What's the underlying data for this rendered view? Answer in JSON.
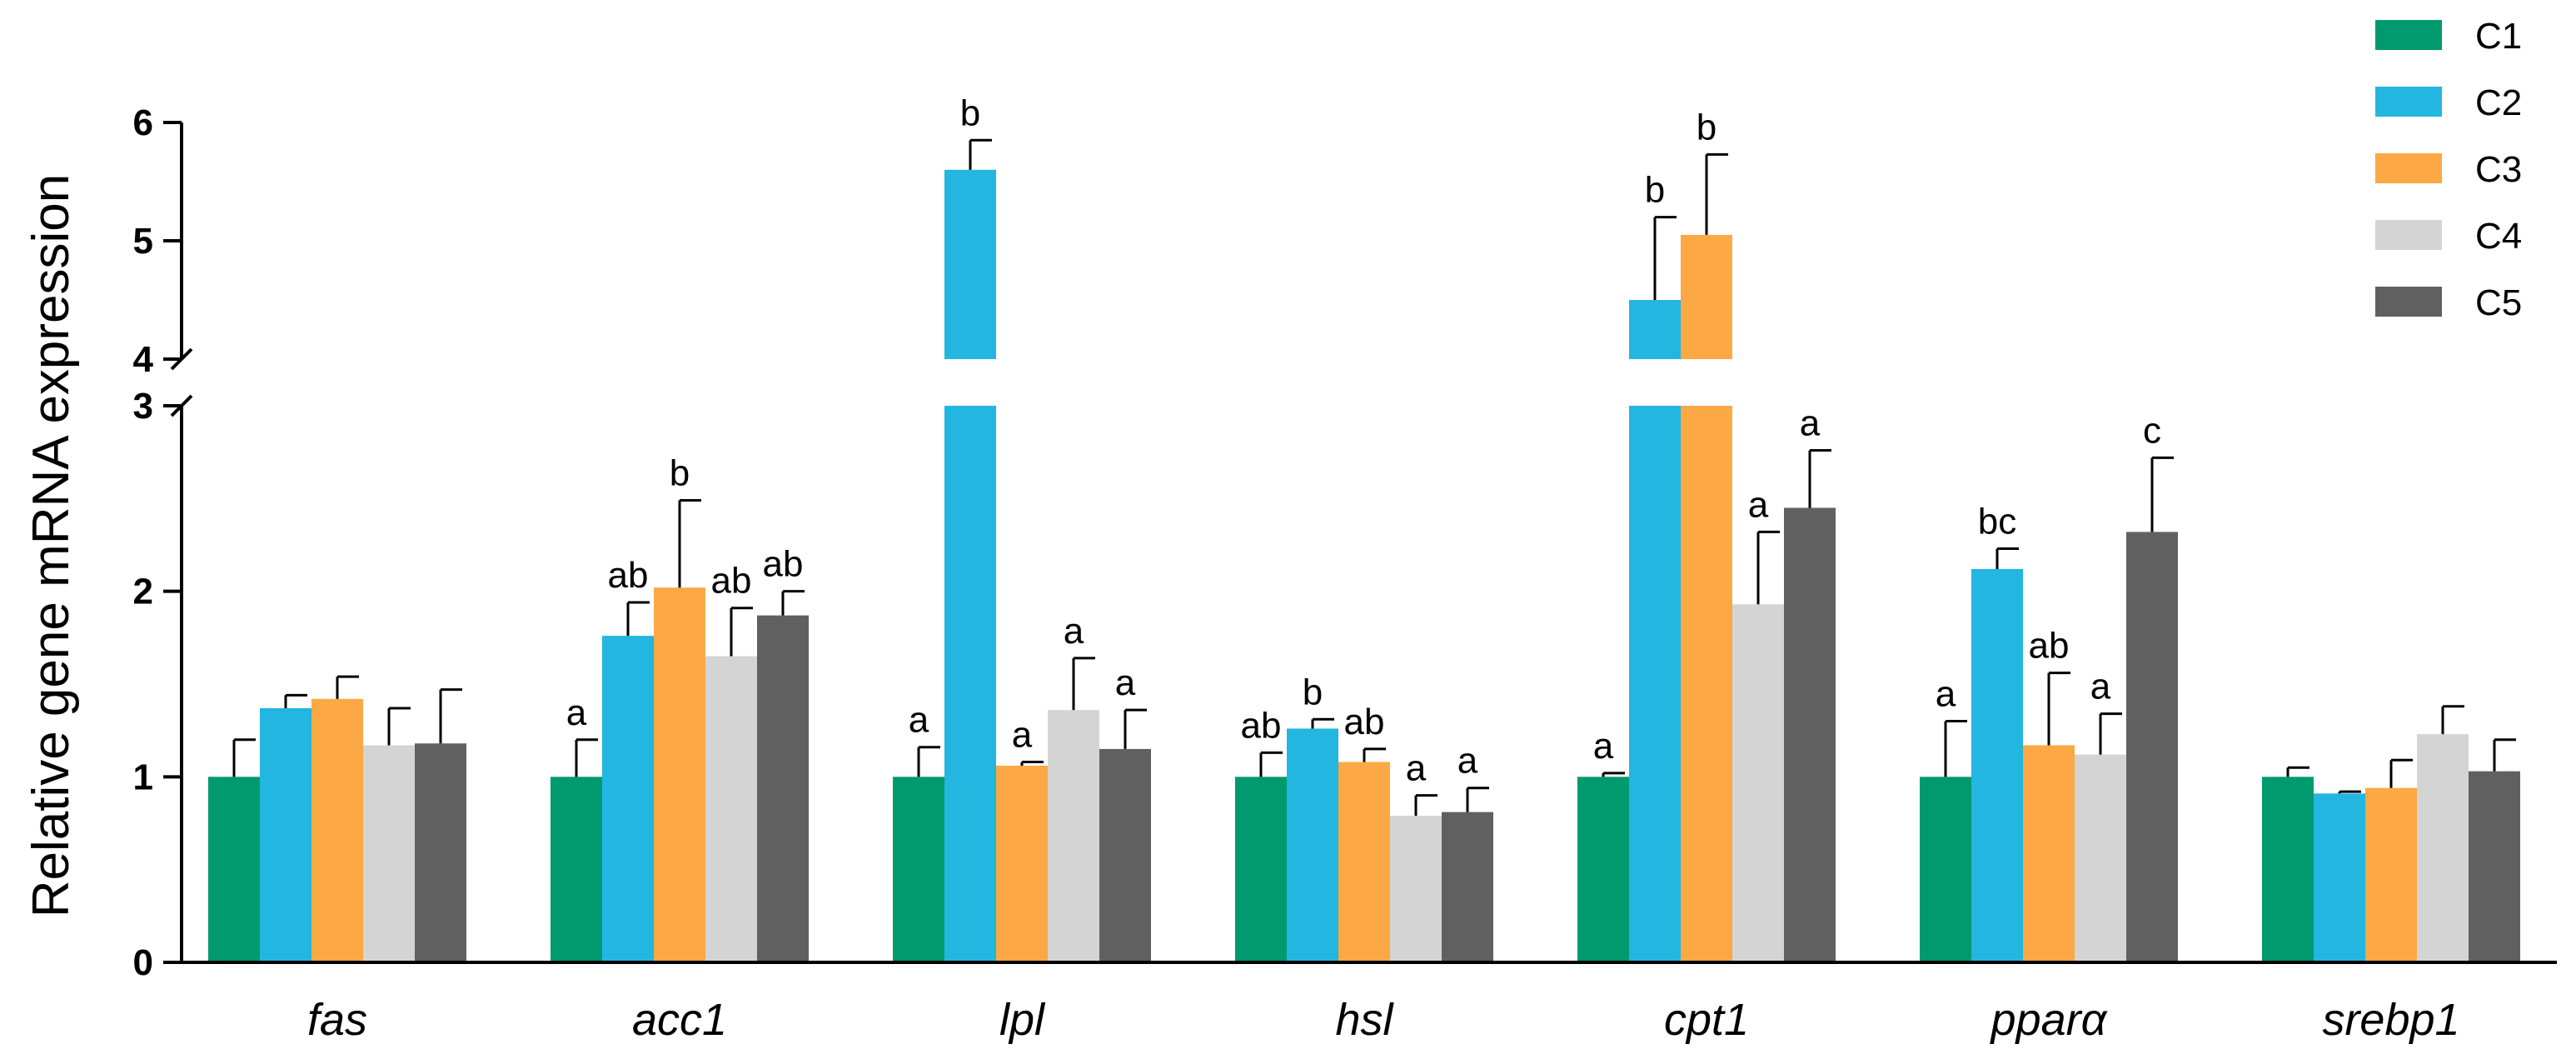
{
  "chart_data": {
    "type": "bar",
    "title": "",
    "xlabel": "",
    "ylabel": "Relative gene mRNA expression",
    "categories": [
      "fas",
      "acc1",
      "lpl",
      "hsl",
      "cpt1",
      "pparα",
      "srebp1"
    ],
    "ylim": [
      0,
      6
    ],
    "axis_break": [
      3,
      4
    ],
    "yticks": [
      "0",
      "1",
      "2",
      "3",
      "4",
      "5",
      "6"
    ],
    "legend_position": "top-right",
    "series": [
      {
        "name": "C1",
        "color": "#009a6e",
        "values": [
          1.0,
          1.0,
          1.0,
          1.0,
          1.0,
          1.0,
          1.0
        ],
        "errors": [
          0.2,
          0.2,
          0.16,
          0.13,
          0.02,
          0.3,
          0.05
        ],
        "sig": [
          "",
          "a",
          "a",
          "ab",
          "a",
          "a",
          ""
        ]
      },
      {
        "name": "C2",
        "color": "#22b6e0",
        "values": [
          1.37,
          1.76,
          5.6,
          1.26,
          4.5,
          2.12,
          0.91
        ],
        "errors": [
          0.07,
          0.18,
          0.25,
          0.05,
          0.7,
          0.11,
          0.01
        ],
        "sig": [
          "",
          "ab",
          "b",
          "b",
          "b",
          "bc",
          ""
        ]
      },
      {
        "name": "C3",
        "color": "#fca845",
        "values": [
          1.42,
          2.02,
          1.06,
          1.08,
          5.05,
          1.17,
          0.94
        ],
        "errors": [
          0.12,
          0.47,
          0.02,
          0.07,
          0.68,
          0.39,
          0.15
        ],
        "sig": [
          "",
          "b",
          "a",
          "ab",
          "b",
          "ab",
          ""
        ]
      },
      {
        "name": "C4",
        "color": "#d4d4d4",
        "values": [
          1.17,
          1.65,
          1.36,
          0.79,
          1.93,
          1.12,
          1.23
        ],
        "errors": [
          0.2,
          0.26,
          0.28,
          0.11,
          0.39,
          0.22,
          0.15
        ],
        "sig": [
          "",
          "ab",
          "a",
          "a",
          "a",
          "a",
          ""
        ]
      },
      {
        "name": "C5",
        "color": "#606060",
        "values": [
          1.18,
          1.87,
          1.15,
          0.81,
          2.45,
          2.32,
          1.03
        ],
        "errors": [
          0.29,
          0.13,
          0.21,
          0.13,
          0.31,
          0.4,
          0.17
        ],
        "sig": [
          "",
          "ab",
          "a",
          "a",
          "a",
          "c",
          ""
        ]
      }
    ]
  }
}
